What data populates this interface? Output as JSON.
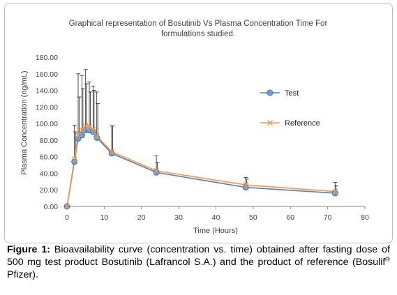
{
  "chart_data": {
    "type": "line",
    "title_line1": "Graphical representation of Bosutinib Vs Plasma Concentration Time For",
    "title_line2": "formulations studied.",
    "xlabel": "Time  (Hours)",
    "ylabel": "Plasma Concentration (ng/mL)",
    "xlim": [
      0,
      80
    ],
    "ylim": [
      0,
      180
    ],
    "x_ticks": [
      "0",
      "10",
      "20",
      "30",
      "40",
      "50",
      "60",
      "70",
      "80"
    ],
    "y_ticks": [
      "0.00",
      "20.00",
      "40.00",
      "60.00",
      "80.00",
      "100.00",
      "120.00",
      "140.00",
      "160.00",
      "180.00"
    ],
    "x": [
      0,
      2,
      3,
      4,
      5,
      6,
      7,
      8,
      12,
      24,
      48,
      72
    ],
    "series": [
      {
        "name": "Test",
        "color": "#4f81bd",
        "values": [
          0,
          54,
          82,
          86,
          92,
          92,
          90,
          83,
          64,
          41,
          23,
          16
        ],
        "error_upper": [
          0,
          98,
          160,
          158,
          165,
          150,
          145,
          138,
          97,
          61,
          35,
          29
        ]
      },
      {
        "name": "Reference",
        "color": "#f79646",
        "values": [
          0,
          57,
          86,
          92,
          97,
          96,
          93,
          85,
          66,
          43,
          26,
          18
        ],
        "error_upper": [
          0,
          90,
          132,
          142,
          148,
          138,
          140,
          124,
          97,
          53,
          33,
          25
        ]
      }
    ],
    "legend": "right",
    "grid": false
  },
  "caption": {
    "label": "Figure 1:",
    "text_part1": " Bioavailability curve (concentration vs. time) obtained after fasting dose of 500 mg test product Bosutinib (Lafrancol S.A.) and the product of reference (Bosulif",
    "superscript": "®",
    "text_part2": " Pfizer)."
  }
}
